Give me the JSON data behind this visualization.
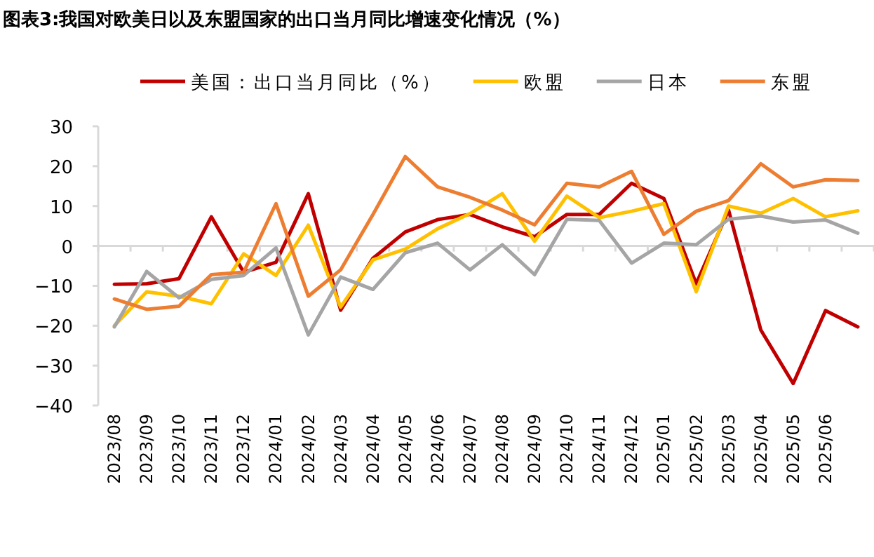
{
  "chart_data": {
    "type": "line",
    "title": "图表3:我国对欧美日以及东盟国家的出口当月同比增速变化情况（%）",
    "categories": [
      "2023/08",
      "2023/09",
      "2023/10",
      "2023/11",
      "2023/12",
      "2024/01",
      "2024/02",
      "2024/03",
      "2024/04",
      "2024/05",
      "2024/06",
      "2024/07",
      "2024/08",
      "2024/09",
      "2024/10",
      "2024/11",
      "2024/12",
      "2025/01",
      "2025/02",
      "2025/03",
      "2025/04",
      "2025/05",
      "2025/06",
      null
    ],
    "series": [
      {
        "name": "美国：出口当月同比（%）",
        "color": "#c00000",
        "values": [
          -9.6,
          -9.5,
          -8.2,
          7.3,
          -6.6,
          -4.1,
          13.1,
          -16.1,
          -3.1,
          3.5,
          6.6,
          7.9,
          4.8,
          2.3,
          7.9,
          7.9,
          15.7,
          11.9,
          -9.5,
          9.0,
          -21.1,
          -34.5,
          -16.2,
          -20.3
        ]
      },
      {
        "name": "欧盟",
        "color": "#ffc000",
        "values": [
          -20,
          -11.5,
          -12.6,
          -14.5,
          -2.0,
          -7.4,
          5.2,
          -15.3,
          -3.5,
          -0.8,
          4.3,
          8.1,
          13.1,
          1.2,
          12.5,
          7.1,
          8.7,
          10.6,
          -11.5,
          10.0,
          8.2,
          11.9,
          7.3,
          8.8
        ]
      },
      {
        "name": "日本",
        "color": "#a5a5a5",
        "values": [
          -20.3,
          -6.4,
          -13,
          -8.4,
          -7.4,
          -0.5,
          -22.3,
          -7.8,
          -10.9,
          -1.7,
          0.7,
          -6.0,
          0.3,
          -7.2,
          6.7,
          6.4,
          -4.3,
          0.7,
          0.3,
          6.7,
          7.5,
          6.0,
          6.5,
          3.2
        ]
      },
      {
        "name": "东盟",
        "color": "#ed7d31",
        "values": [
          -13.3,
          -15.9,
          -15.1,
          -7.2,
          -6.6,
          10.6,
          -12.6,
          -6.0,
          7.9,
          22.4,
          14.8,
          12.2,
          9.0,
          5.3,
          15.7,
          14.8,
          18.7,
          2.9,
          8.7,
          11.4,
          20.6,
          14.8,
          16.6,
          16.4
        ]
      }
    ],
    "ylim": [
      -40,
      30
    ],
    "yticks": [
      -40,
      -30,
      -20,
      -10,
      0,
      10,
      20,
      30
    ],
    "legend": "top"
  }
}
